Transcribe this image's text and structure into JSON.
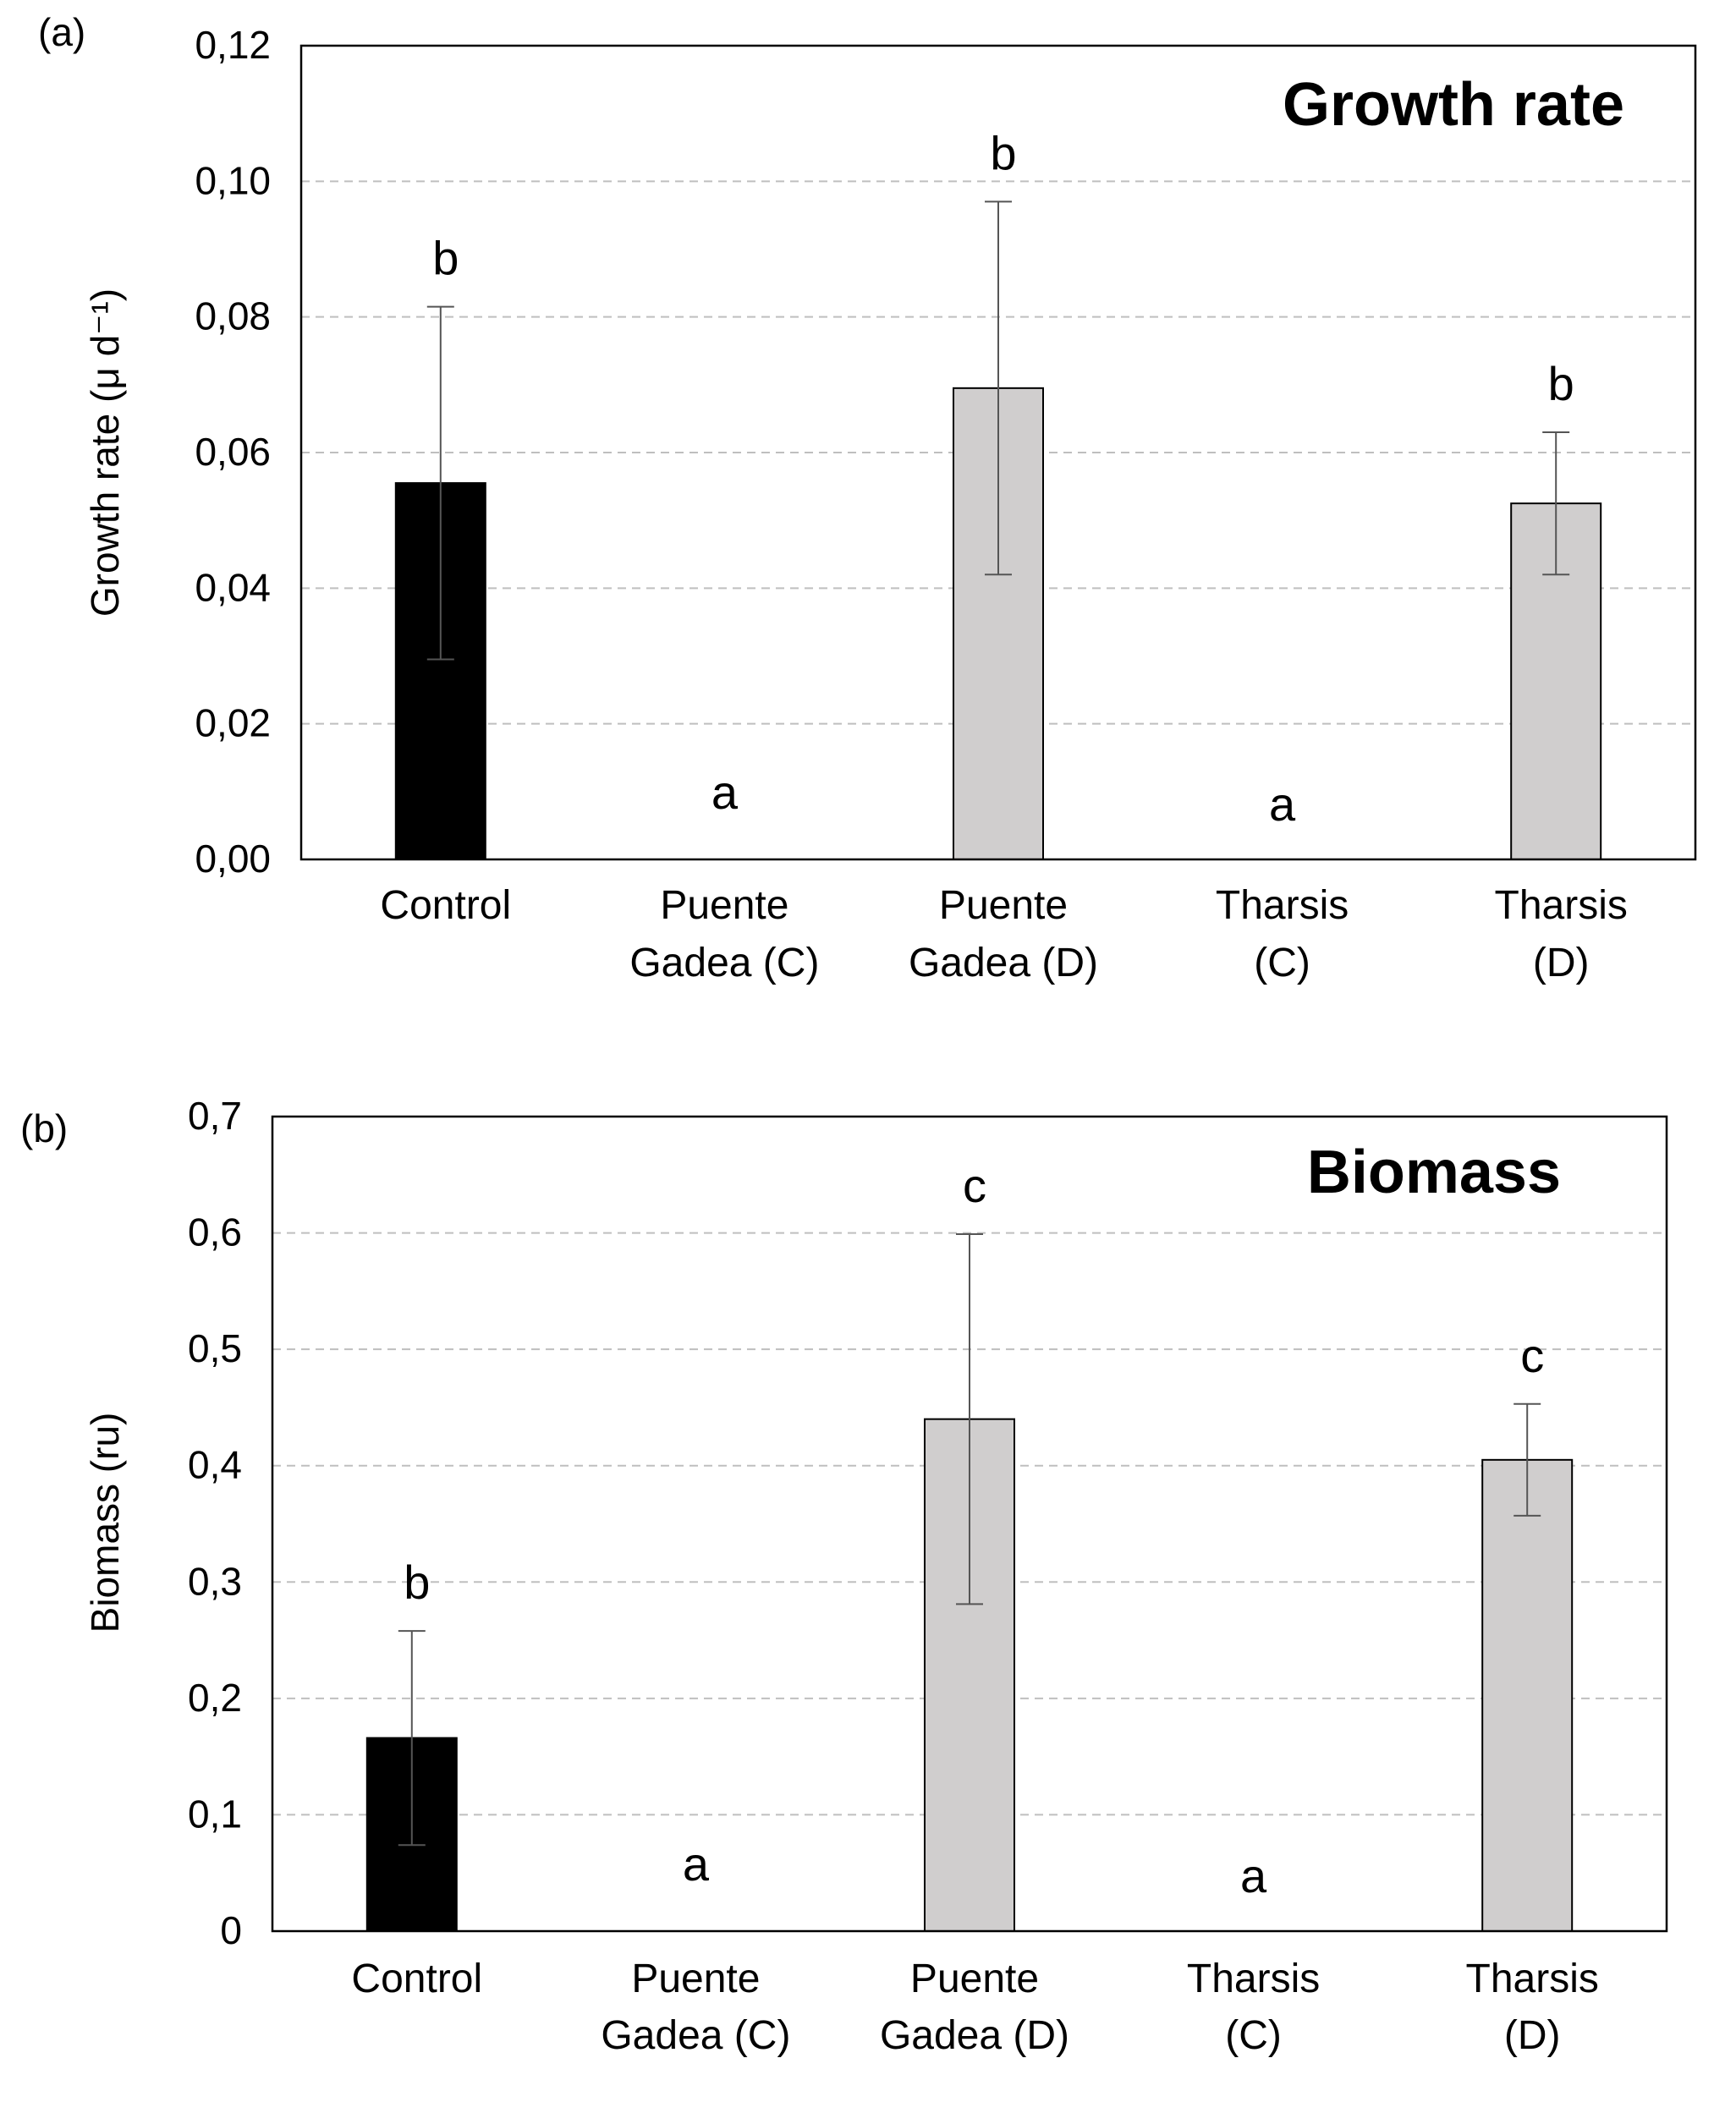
{
  "colors": {
    "control": "#000000",
    "treatment": "#d0cece",
    "grid": "#bfbfbf",
    "axis": "#000000",
    "error_bar": "#555555"
  },
  "chart_data": [
    {
      "type": "bar",
      "panel_label": "(a)",
      "title": "Growth rate",
      "ylabel": "Growth rate (μ d⁻¹)",
      "xlabel": "",
      "ylim": [
        0,
        0.12
      ],
      "yticks": [
        0,
        0.02,
        0.04,
        0.06,
        0.08,
        0.1,
        0.12
      ],
      "ytick_labels": [
        "0,00",
        "0,02",
        "0,04",
        "0,06",
        "0,08",
        "0,10",
        "0,12"
      ],
      "grid": "horizontal dashed",
      "categories": [
        [
          "Control"
        ],
        [
          "Puente",
          "Gadea (C)"
        ],
        [
          "Puente",
          "Gadea (D)"
        ],
        [
          "Tharsis",
          "(C)"
        ],
        [
          "Tharsis",
          "(D)"
        ]
      ],
      "values": [
        0.0555,
        0,
        0.0695,
        0,
        0.0525
      ],
      "errors": [
        0.026,
        0,
        0.0275,
        0,
        0.0105
      ],
      "significance_letters": [
        "b",
        "a",
        "b",
        "a",
        "b"
      ],
      "bar_colors": [
        "control",
        "treatment",
        "treatment",
        "treatment",
        "treatment"
      ]
    },
    {
      "type": "bar",
      "panel_label": "(b)",
      "title": "Biomass",
      "ylabel": "Biomass (ru)",
      "xlabel": "",
      "ylim": [
        0,
        0.7
      ],
      "yticks": [
        0,
        0.1,
        0.2,
        0.3,
        0.4,
        0.5,
        0.6,
        0.7
      ],
      "ytick_labels": [
        "0",
        "0,1",
        "0,2",
        "0,3",
        "0,4",
        "0,5",
        "0,6",
        "0,7"
      ],
      "grid": "horizontal dashed",
      "categories": [
        [
          "Control"
        ],
        [
          "Puente",
          "Gadea (C)"
        ],
        [
          "Puente",
          "Gadea (D)"
        ],
        [
          "Tharsis",
          "(C)"
        ],
        [
          "Tharsis",
          "(D)"
        ]
      ],
      "values": [
        0.166,
        0,
        0.44,
        0,
        0.405
      ],
      "errors": [
        0.092,
        0,
        0.159,
        0,
        0.048
      ],
      "significance_letters": [
        "b",
        "a",
        "c",
        "a",
        "c"
      ],
      "bar_colors": [
        "control",
        "treatment",
        "treatment",
        "treatment",
        "treatment"
      ]
    }
  ]
}
